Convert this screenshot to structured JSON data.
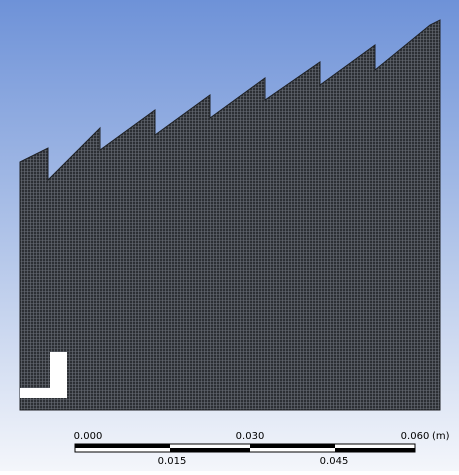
{
  "scale_bar": {
    "top_labels": [
      "0.000",
      "0.030",
      "0.060"
    ],
    "unit": "(m)",
    "bottom_labels": [
      "0.015",
      "0.045"
    ]
  }
}
